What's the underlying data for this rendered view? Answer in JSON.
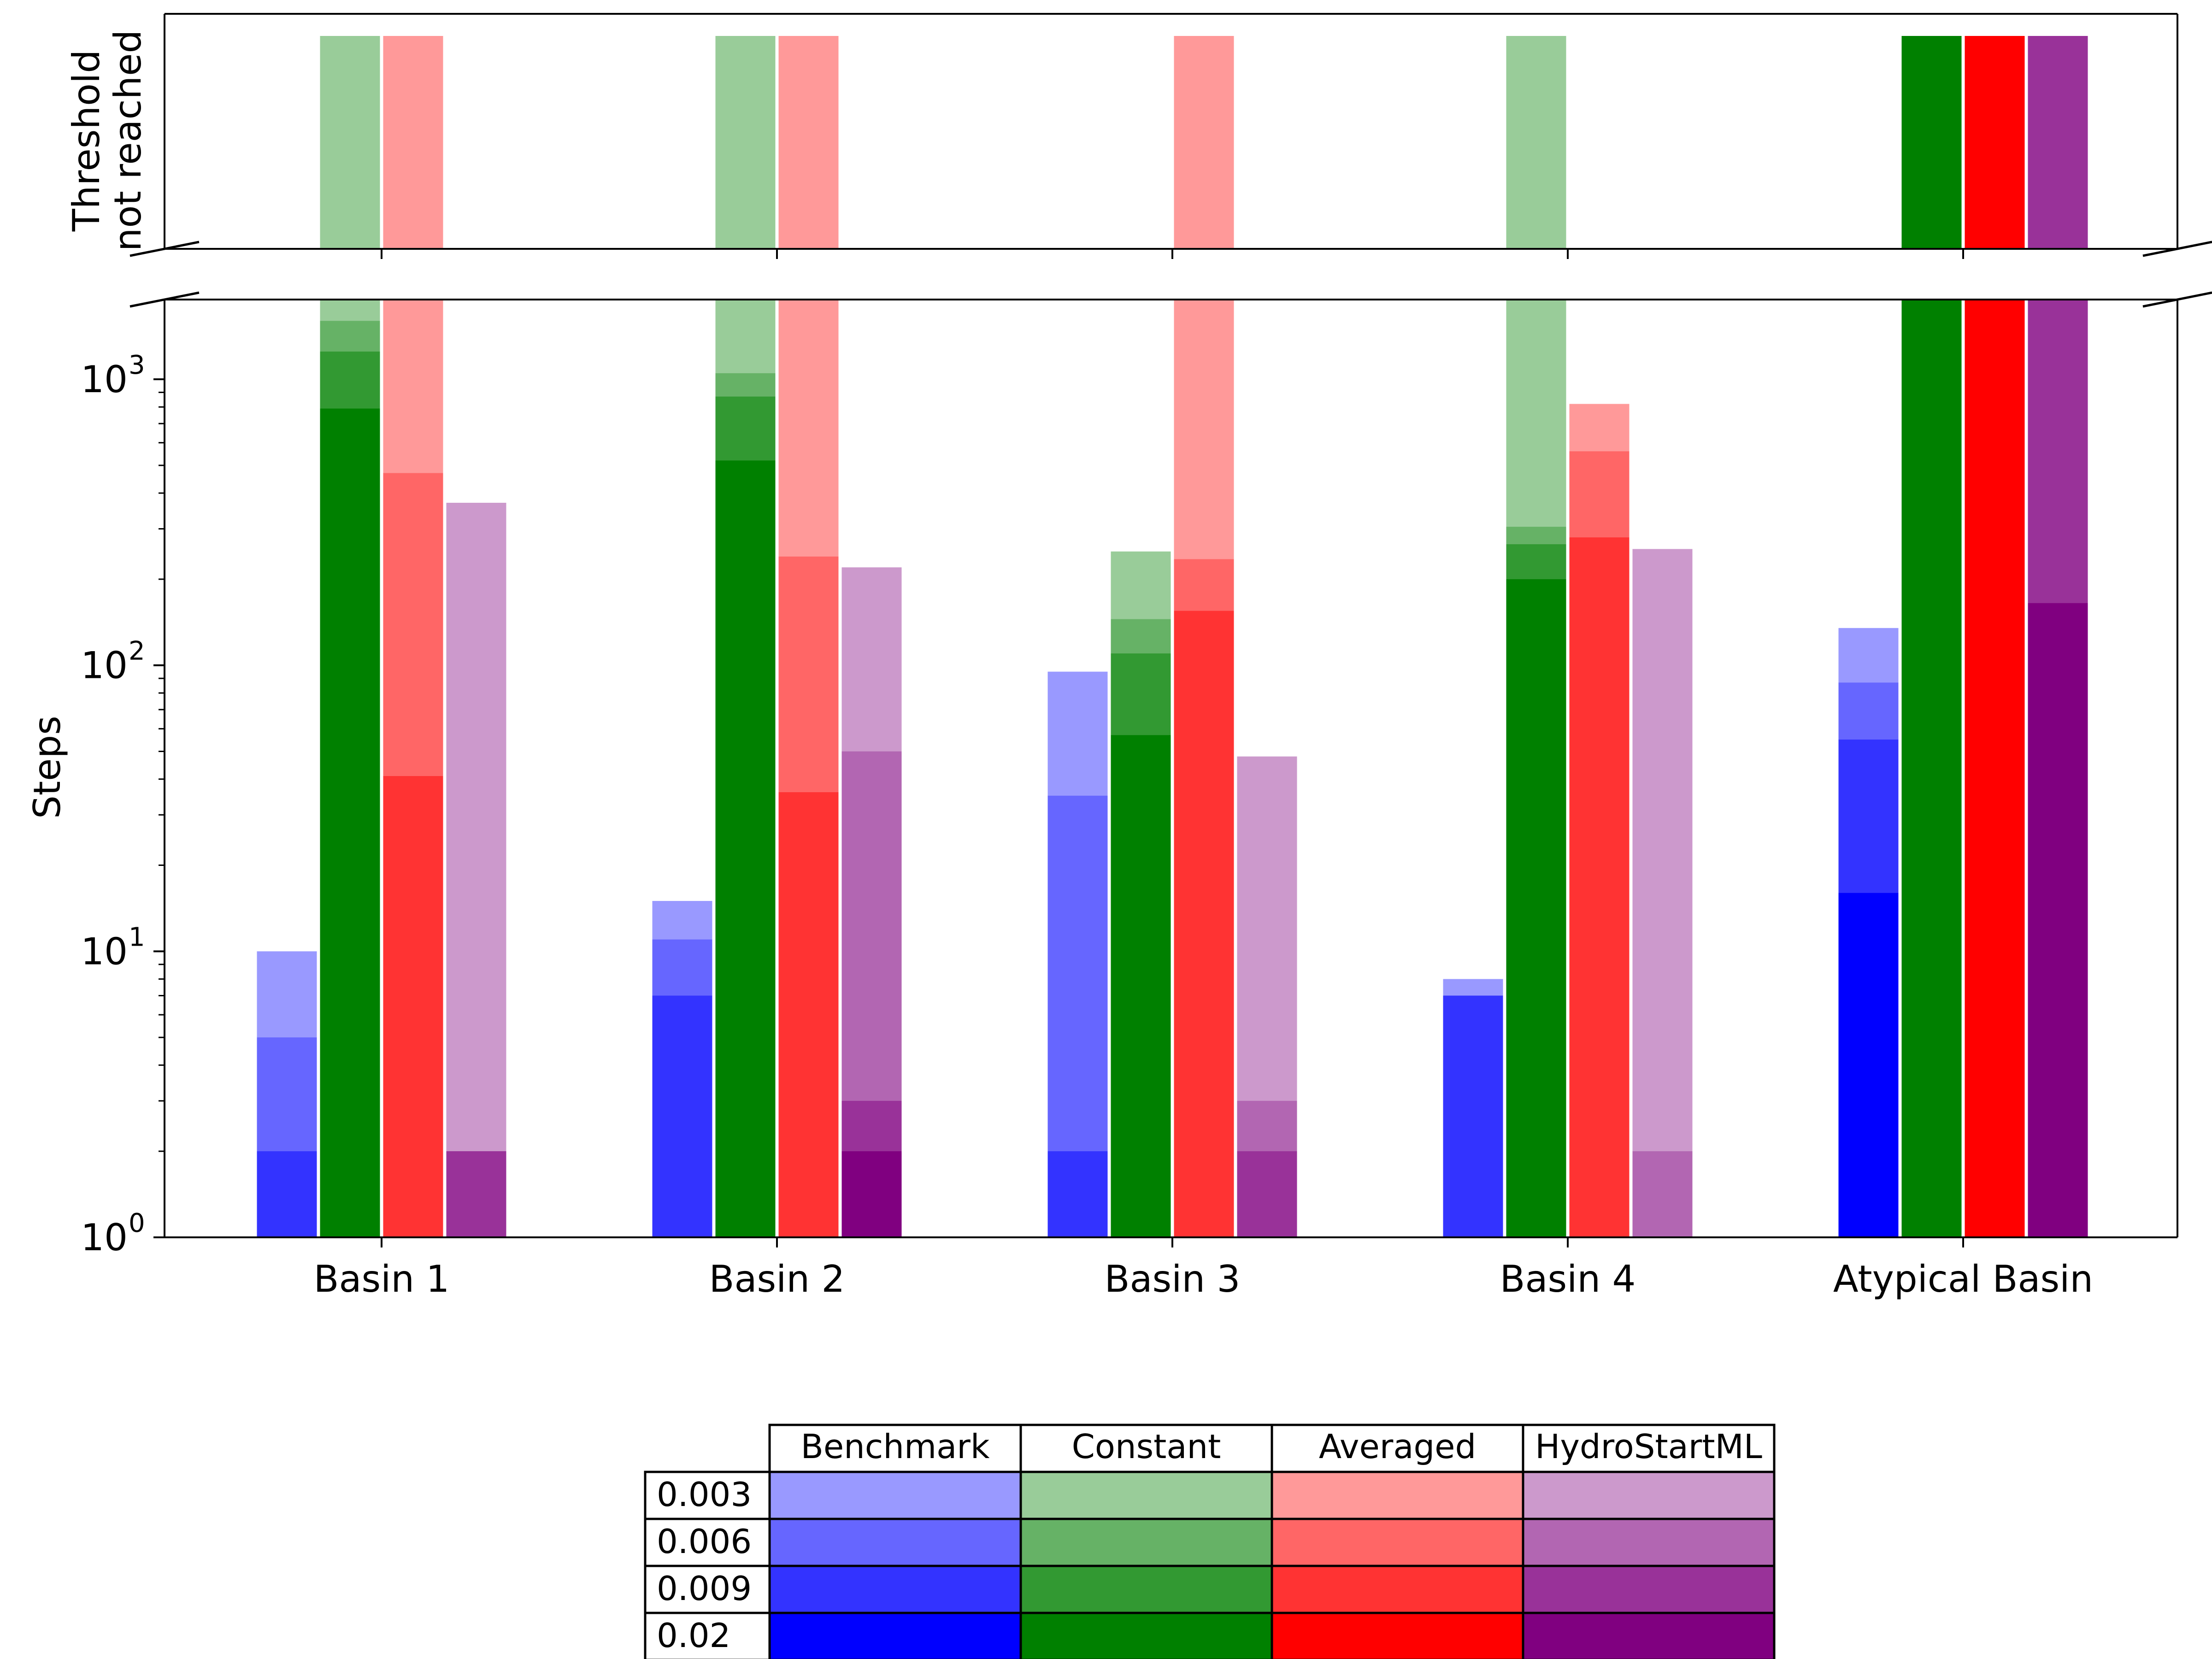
{
  "chart_data": {
    "type": "bar",
    "layout": "grouped stacked-threshold bars, log y-axis with broken top panel",
    "categories": [
      "Basin 1",
      "Basin 2",
      "Basin 3",
      "Basin 4",
      "Atypical Basin"
    ],
    "ylabel": "Steps",
    "top_panel_label_line1": "Threshold",
    "top_panel_label_line2": "not reached",
    "yscale": "log",
    "ylim": [
      1,
      1900
    ],
    "y_ticks": [
      {
        "value": 1,
        "base": "10",
        "exp": "0"
      },
      {
        "value": 10,
        "base": "10",
        "exp": "1"
      },
      {
        "value": 100,
        "base": "10",
        "exp": "2"
      },
      {
        "value": 1000,
        "base": "10",
        "exp": "3"
      }
    ],
    "thresholds": [
      "0.003",
      "0.006",
      "0.009",
      "0.02"
    ],
    "series": [
      {
        "name": "Benchmark",
        "colors": [
          "#9999ff",
          "#6666ff",
          "#3333ff",
          "#0000ff"
        ],
        "values": [
          [
            10,
            5,
            2,
            null
          ],
          [
            15,
            11,
            7,
            null
          ],
          [
            95,
            35,
            2,
            null
          ],
          [
            8,
            7,
            7,
            null
          ],
          [
            135,
            87,
            55,
            16
          ]
        ]
      },
      {
        "name": "Constant",
        "colors": [
          "#99cc99",
          "#66b266",
          "#329932",
          "#008000"
        ],
        "values": [
          [
            "not_reached",
            1600,
            1250,
            790
          ],
          [
            "not_reached",
            1050,
            870,
            520
          ],
          [
            250,
            145,
            110,
            57
          ],
          [
            "not_reached",
            305,
            265,
            200
          ],
          [
            "not_reached",
            "not_reached",
            "not_reached",
            "not_reached"
          ]
        ]
      },
      {
        "name": "Averaged",
        "colors": [
          "#ff9999",
          "#ff6666",
          "#ff3333",
          "#ff0000"
        ],
        "values": [
          [
            "not_reached",
            470,
            41,
            null
          ],
          [
            "not_reached",
            240,
            36,
            null
          ],
          [
            "not_reached",
            235,
            155,
            null
          ],
          [
            820,
            560,
            280,
            null
          ],
          [
            "not_reached",
            "not_reached",
            "not_reached",
            "not_reached"
          ]
        ]
      },
      {
        "name": "HydroStartML",
        "colors": [
          "#cc99cc",
          "#b266b2",
          "#993299",
          "#800080"
        ],
        "values": [
          [
            370,
            2,
            2,
            null
          ],
          [
            220,
            50,
            3,
            2
          ],
          [
            48,
            3,
            2,
            null
          ],
          [
            255,
            2,
            null,
            null
          ],
          [
            "not_reached",
            "not_reached",
            "not_reached",
            165
          ]
        ]
      }
    ],
    "legend_table": {
      "col_labels": [
        "Benchmark",
        "Constant",
        "Averaged",
        "HydroStartML"
      ],
      "row_labels": [
        "0.003",
        "0.006",
        "0.009",
        "0.02"
      ]
    }
  }
}
